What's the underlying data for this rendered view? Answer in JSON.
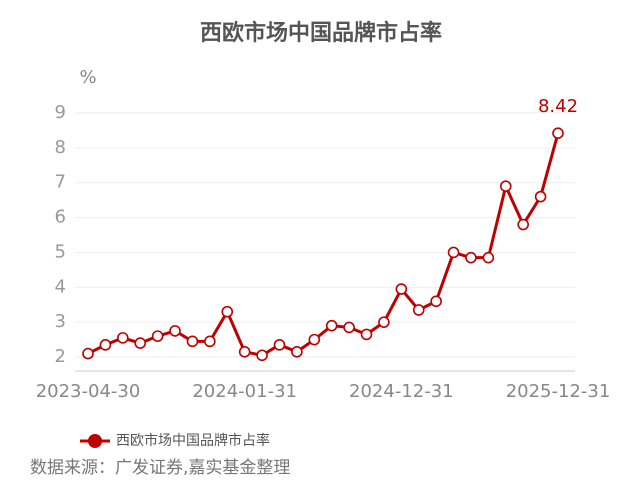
{
  "chart_data": {
    "type": "line",
    "title": "西欧市场中国品牌市占率",
    "y_unit": "%",
    "source": "数据来源：广发证券,嘉实基金整理",
    "categories": [
      "2023-04-30",
      null,
      null,
      null,
      null,
      null,
      null,
      null,
      null,
      "2024-01-31",
      null,
      null,
      null,
      null,
      null,
      null,
      null,
      null,
      "2024-12-31",
      null,
      null,
      null,
      null,
      null,
      null,
      null,
      null,
      "2025-12-31"
    ],
    "series": [
      {
        "name": "西欧市场中国品牌市占率",
        "color": "#c00000",
        "values": [
          2.1,
          2.35,
          2.55,
          2.4,
          2.6,
          2.75,
          2.45,
          2.45,
          3.3,
          2.15,
          2.05,
          2.35,
          2.15,
          2.5,
          2.9,
          2.85,
          2.65,
          3.0,
          3.95,
          3.35,
          3.6,
          5.0,
          4.85,
          4.85,
          6.9,
          5.8,
          6.6,
          8.42
        ]
      }
    ],
    "ylim": [
      1.6,
      9.2
    ],
    "yticks": [
      2,
      3,
      4,
      5,
      6,
      7,
      8,
      9
    ],
    "grid": true,
    "labeled_points": [
      27
    ]
  }
}
